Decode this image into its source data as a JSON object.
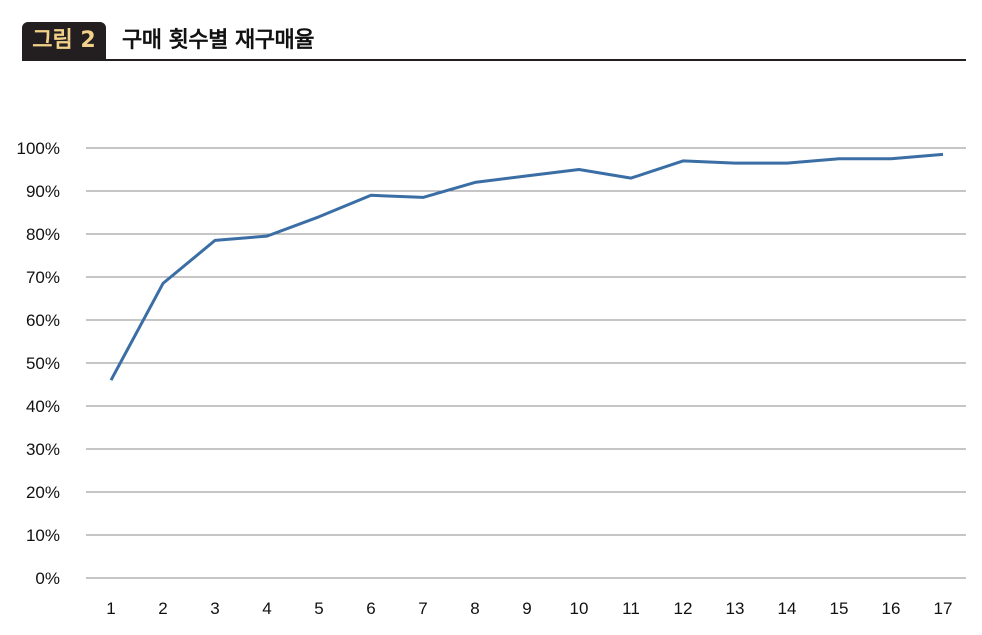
{
  "figure": {
    "badge": "그림 2",
    "title": "구매 횟수별 재구매율"
  },
  "colors": {
    "line": "#3a6ea5",
    "grid": "#8c8c8c",
    "badge_bg": "#231f20",
    "badge_text": "#f2d28b"
  },
  "chart_data": {
    "type": "line",
    "title": "",
    "xlabel": "",
    "ylabel": "",
    "x": [
      1,
      2,
      3,
      4,
      5,
      6,
      7,
      8,
      9,
      10,
      11,
      12,
      13,
      14,
      15,
      16,
      17
    ],
    "series": [
      {
        "values": [
          46,
          68.5,
          78.5,
          79.5,
          84,
          89,
          88.5,
          92,
          93.5,
          95,
          93,
          97,
          96.5,
          96.5,
          97.5,
          97.5,
          98.5
        ]
      }
    ],
    "ylim": [
      0,
      100
    ],
    "yticks": [
      0,
      10,
      20,
      30,
      40,
      50,
      60,
      70,
      80,
      90,
      100
    ],
    "ytick_labels": [
      "0%",
      "10%",
      "20%",
      "30%",
      "40%",
      "50%",
      "60%",
      "70%",
      "80%",
      "90%",
      "100%"
    ],
    "xtick_labels": [
      "1",
      "2",
      "3",
      "4",
      "5",
      "6",
      "7",
      "8",
      "9",
      "10",
      "11",
      "12",
      "13",
      "14",
      "15",
      "16",
      "17"
    ],
    "grid": true,
    "legend": "none"
  }
}
